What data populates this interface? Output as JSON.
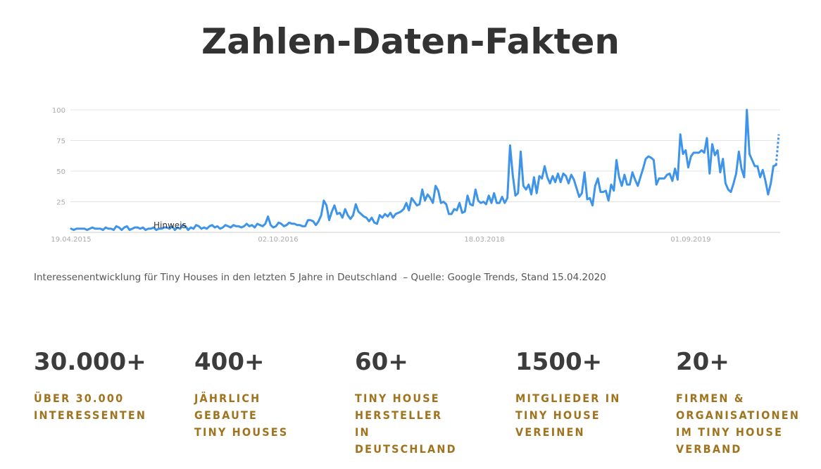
{
  "header": {
    "title": "Zahlen-Daten-Fakten"
  },
  "chart_data": {
    "type": "line",
    "title": "",
    "xlabel": "",
    "ylabel": "",
    "ylim": [
      0,
      100
    ],
    "yticks": [
      "100",
      "75",
      "50",
      "25"
    ],
    "xtick_labels": [
      "19.04.2015",
      "02.10.2016",
      "18.03.2018",
      "01.09.2019"
    ],
    "annotation": "Hinweis",
    "series_color": "#3d94e8",
    "grid": true,
    "last_point_partial": true,
    "series": [
      {
        "values": [
          3,
          2,
          3,
          3,
          3,
          3,
          2,
          3,
          4,
          3,
          3,
          3,
          2,
          4,
          3,
          3,
          2,
          5,
          4,
          2,
          4,
          5,
          2,
          3,
          4,
          4,
          3,
          4,
          2,
          3,
          3,
          4,
          2,
          3,
          3,
          4,
          4,
          3,
          5,
          2,
          4,
          3,
          6,
          5,
          2,
          4,
          3,
          6,
          5,
          3,
          4,
          3,
          5,
          6,
          4,
          5,
          3,
          4,
          6,
          5,
          4,
          6,
          5,
          5,
          4,
          5,
          7,
          5,
          6,
          4,
          7,
          6,
          5,
          7,
          13,
          6,
          4,
          5,
          8,
          7,
          5,
          6,
          8,
          7,
          7,
          6,
          6,
          5,
          5,
          10,
          10,
          9,
          6,
          9,
          14,
          26,
          22,
          10,
          17,
          22,
          15,
          16,
          12,
          19,
          14,
          11,
          14,
          23,
          17,
          15,
          13,
          12,
          9,
          12,
          8,
          7,
          14,
          12,
          15,
          13,
          16,
          12,
          15,
          16,
          17,
          19,
          24,
          18,
          28,
          25,
          22,
          23,
          35,
          26,
          31,
          28,
          24,
          38,
          34,
          24,
          25,
          23,
          15,
          15,
          19,
          18,
          24,
          16,
          17,
          30,
          23,
          22,
          35,
          26,
          24,
          25,
          23,
          30,
          24,
          32,
          24,
          24,
          29,
          24,
          28,
          71,
          47,
          30,
          32,
          66,
          38,
          35,
          39,
          31,
          45,
          32,
          46,
          44,
          54,
          45,
          40,
          46,
          41,
          48,
          41,
          48,
          46,
          40,
          47,
          43,
          36,
          29,
          32,
          49,
          27,
          28,
          22,
          38,
          44,
          33,
          33,
          34,
          26,
          39,
          34,
          59,
          45,
          38,
          47,
          39,
          39,
          49,
          43,
          38,
          45,
          52,
          60,
          62,
          61,
          59,
          39,
          44,
          44,
          44,
          47,
          48,
          42,
          52,
          43,
          80,
          64,
          67,
          53,
          62,
          65,
          65,
          65,
          67,
          65,
          77,
          48,
          72,
          63,
          67,
          49,
          60,
          40,
          35,
          33,
          40,
          48,
          66,
          52,
          45,
          100,
          64,
          59,
          54,
          54,
          45,
          51,
          42,
          31,
          40,
          54,
          55,
          80
        ]
      }
    ]
  },
  "caption": "Interessenentwicklung für Tiny Houses in den letzten 5 Jahre in Deutschland  – Quelle: Google Trends, Stand 15.04.2020",
  "stats": [
    {
      "value": "30.000+",
      "label": "ÜBER 30.000 INTERESSENTEN"
    },
    {
      "value": "400+",
      "label": "JÄHRLICH GEBAUTE TINY HOUSES"
    },
    {
      "value": "60+",
      "label": "TINY HOUSE HERSTELLER IN DEUTSCHLAND"
    },
    {
      "value": "1500+",
      "label": "MITGLIEDER IN TINY HOUSE VEREINEN"
    },
    {
      "value": "20+",
      "label": "FIRMEN & ORGANISATIONEN IM TINY HOUSE VERBAND"
    }
  ]
}
